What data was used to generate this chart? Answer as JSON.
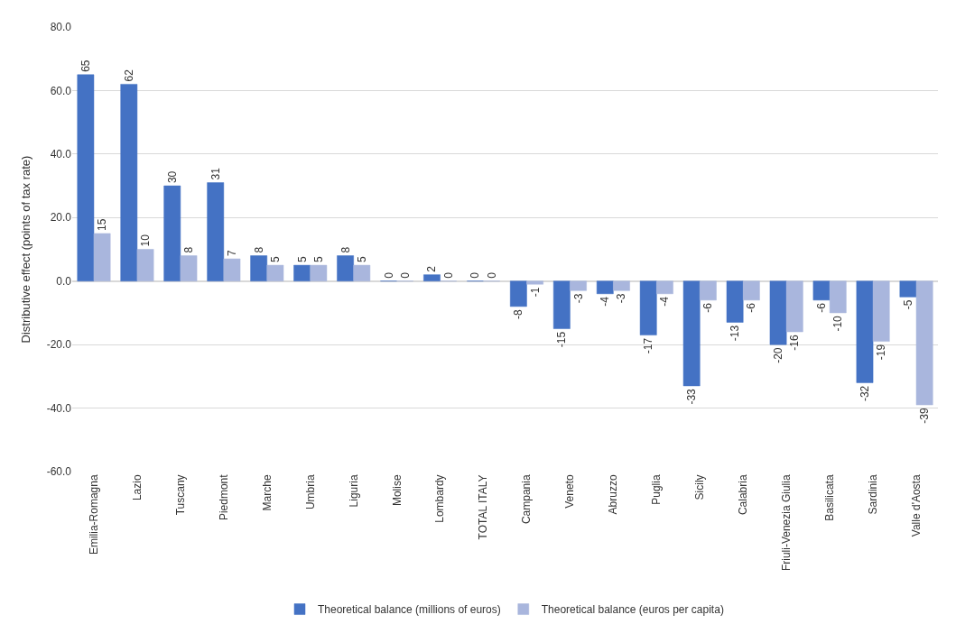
{
  "chart_data": {
    "type": "bar",
    "ylabel": "Distributive effect (points of tax rate)",
    "categories": [
      "Emilia-Romagna",
      "Lazio",
      "Tuscany",
      "Piedmont",
      "Marche",
      "Umbria",
      "Liguria",
      "Molise",
      "Lombardy",
      "TOTAL ITALY",
      "Campania",
      "Veneto",
      "Abruzzo",
      "Puglia",
      "Sicily",
      "Calabria",
      "Friuli-Venezia Giulia",
      "Basilicata",
      "Sardinia",
      "Valle d'Aosta"
    ],
    "series": [
      {
        "name": "Theoretical balance (millions of euros)",
        "color": "#4472c4",
        "values": [
          65,
          62,
          30,
          31,
          8,
          5,
          8,
          0,
          2,
          0,
          -8,
          -15,
          -4,
          -17,
          -33,
          -13,
          -20,
          -6,
          -32,
          -5
        ]
      },
      {
        "name": "Theoretical balance (euros per capita)",
        "color": "#a9b6dd",
        "values": [
          15,
          10,
          8,
          7,
          5,
          5,
          5,
          0,
          0,
          0,
          -1,
          -3,
          -3,
          -4,
          -6,
          -6,
          -16,
          -10,
          -19,
          -39
        ]
      }
    ],
    "ylim": [
      -60,
      80
    ],
    "yticks": [
      {
        "value": -60,
        "label": "-60.0"
      },
      {
        "value": -40,
        "label": "-40.0"
      },
      {
        "value": -20,
        "label": "-20.0"
      },
      {
        "value": 0,
        "label": "0.0"
      },
      {
        "value": 20,
        "label": "20.0"
      },
      {
        "value": 40,
        "label": "40.0"
      },
      {
        "value": 60,
        "label": "60.0"
      },
      {
        "value": 80,
        "label": "80.0"
      }
    ],
    "grid": "y",
    "legend": "bottom",
    "data_labels": true
  }
}
